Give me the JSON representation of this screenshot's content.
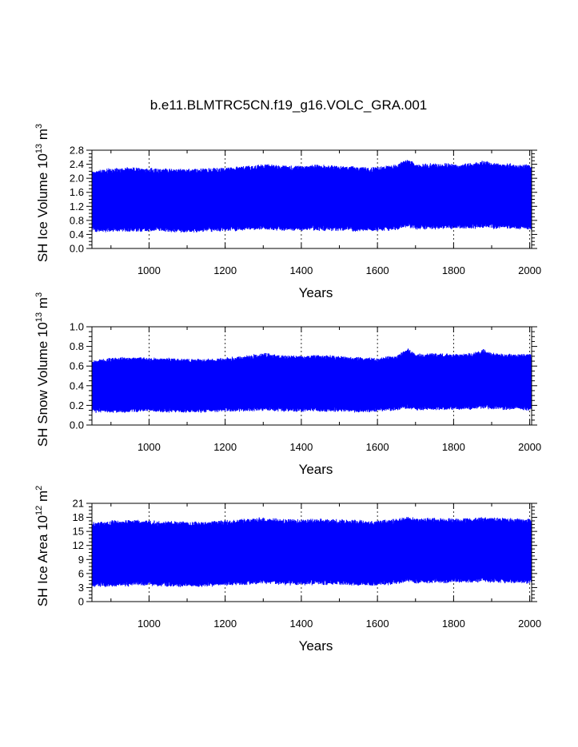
{
  "figure": {
    "title": "b.e11.BLMTRC5CN.f19_g16.VOLC_GRA.001"
  },
  "colors": {
    "series": "#0000ff",
    "axis": "#000000"
  },
  "chart_data": [
    {
      "type": "line",
      "xlabel": "Years",
      "ylabel": "SH Ice Volume 10",
      "ylabel_exp": "13",
      "ylabel_unit": " m",
      "ylabel_unit_exp": "3",
      "xlim": [
        850,
        2005
      ],
      "ylim": [
        0.0,
        2.8
      ],
      "xticks": [
        1000,
        1200,
        1400,
        1600,
        1800,
        2000
      ],
      "xtick_labels": [
        "1000",
        "1200",
        "1400",
        "1600",
        "1800",
        "2000"
      ],
      "yticks": [
        0.0,
        0.4,
        0.8,
        1.2,
        1.6,
        2.0,
        2.4,
        2.8
      ],
      "ytick_labels": [
        "0.0",
        "0.4",
        "0.8",
        "1.2",
        "1.6",
        "2.0",
        "2.4",
        "2.8"
      ],
      "grid": "vertical dashed at major x ticks",
      "series": [
        {
          "color": "#0000ff",
          "seasonal_envelope": {
            "x": [
              850,
              900,
              950,
              1000,
              1050,
              1100,
              1150,
              1200,
              1250,
              1300,
              1350,
              1400,
              1450,
              1500,
              1550,
              1600,
              1650,
              1680,
              1700,
              1750,
              1800,
              1850,
              1880,
              1900,
              1950,
              2005
            ],
            "max": [
              2.2,
              2.28,
              2.3,
              2.28,
              2.27,
              2.26,
              2.27,
              2.3,
              2.33,
              2.4,
              2.36,
              2.35,
              2.38,
              2.35,
              2.32,
              2.3,
              2.38,
              2.55,
              2.4,
              2.42,
              2.4,
              2.42,
              2.5,
              2.42,
              2.4,
              2.38
            ],
            "min": [
              0.48,
              0.48,
              0.48,
              0.5,
              0.48,
              0.47,
              0.48,
              0.5,
              0.52,
              0.55,
              0.52,
              0.52,
              0.52,
              0.52,
              0.5,
              0.5,
              0.53,
              0.62,
              0.55,
              0.56,
              0.57,
              0.58,
              0.6,
              0.58,
              0.57,
              0.55
            ]
          }
        }
      ]
    },
    {
      "type": "line",
      "xlabel": "Years",
      "ylabel": "SH Snow Volume 10",
      "ylabel_exp": "13",
      "ylabel_unit": " m",
      "ylabel_unit_exp": "3",
      "xlim": [
        850,
        2005
      ],
      "ylim": [
        0.0,
        1.0
      ],
      "xticks": [
        1000,
        1200,
        1400,
        1600,
        1800,
        2000
      ],
      "xtick_labels": [
        "1000",
        "1200",
        "1400",
        "1600",
        "1800",
        "2000"
      ],
      "yticks": [
        0.0,
        0.2,
        0.4,
        0.6,
        0.8,
        1.0
      ],
      "ytick_labels": [
        "0.0",
        "0.2",
        "0.4",
        "0.6",
        "0.8",
        "1.0"
      ],
      "grid": "vertical dashed at major x ticks",
      "series": [
        {
          "color": "#0000ff",
          "seasonal_envelope": {
            "x": [
              850,
              900,
              950,
              1000,
              1050,
              1100,
              1150,
              1200,
              1250,
              1300,
              1350,
              1400,
              1450,
              1500,
              1550,
              1600,
              1650,
              1680,
              1700,
              1750,
              1800,
              1850,
              1880,
              1900,
              1950,
              2005
            ],
            "max": [
              0.65,
              0.68,
              0.69,
              0.68,
              0.68,
              0.67,
              0.67,
              0.68,
              0.7,
              0.73,
              0.71,
              0.7,
              0.71,
              0.7,
              0.69,
              0.68,
              0.71,
              0.78,
              0.72,
              0.73,
              0.72,
              0.73,
              0.77,
              0.73,
              0.72,
              0.72
            ],
            "min": [
              0.13,
              0.13,
              0.13,
              0.14,
              0.13,
              0.13,
              0.13,
              0.14,
              0.14,
              0.15,
              0.14,
              0.14,
              0.14,
              0.14,
              0.13,
              0.14,
              0.15,
              0.17,
              0.15,
              0.16,
              0.16,
              0.16,
              0.17,
              0.16,
              0.16,
              0.15
            ]
          }
        }
      ]
    },
    {
      "type": "line",
      "xlabel": "Years",
      "ylabel": "SH Ice Area 10",
      "ylabel_exp": "12",
      "ylabel_unit": " m",
      "ylabel_unit_exp": "2",
      "xlim": [
        850,
        2005
      ],
      "ylim": [
        0,
        21
      ],
      "xticks": [
        1000,
        1200,
        1400,
        1600,
        1800,
        2000
      ],
      "xtick_labels": [
        "1000",
        "1200",
        "1400",
        "1600",
        "1800",
        "2000"
      ],
      "yticks": [
        0,
        3,
        6,
        9,
        12,
        15,
        18,
        21
      ],
      "ytick_labels": [
        "0",
        "3",
        "6",
        "9",
        "12",
        "15",
        "18",
        "21"
      ],
      "grid": "vertical dashed at major x ticks",
      "series": [
        {
          "color": "#0000ff",
          "seasonal_envelope": {
            "x": [
              850,
              900,
              950,
              1000,
              1050,
              1100,
              1150,
              1200,
              1250,
              1300,
              1350,
              1400,
              1450,
              1500,
              1550,
              1600,
              1650,
              1680,
              1700,
              1750,
              1800,
              1850,
              1880,
              1900,
              1950,
              2005
            ],
            "max": [
              16.8,
              17.2,
              17.4,
              17.2,
              17.1,
              17.0,
              17.1,
              17.3,
              17.6,
              17.9,
              17.6,
              17.5,
              17.6,
              17.5,
              17.3,
              17.2,
              17.6,
              18.2,
              17.7,
              17.8,
              17.7,
              17.8,
              18.0,
              17.8,
              17.7,
              17.6
            ],
            "min": [
              3.2,
              3.3,
              3.4,
              3.5,
              3.3,
              3.2,
              3.3,
              3.5,
              3.6,
              3.9,
              3.7,
              3.6,
              3.7,
              3.6,
              3.5,
              3.5,
              3.8,
              4.2,
              3.9,
              4.0,
              4.0,
              4.1,
              4.3,
              4.1,
              4.0,
              3.9
            ]
          }
        }
      ]
    }
  ]
}
